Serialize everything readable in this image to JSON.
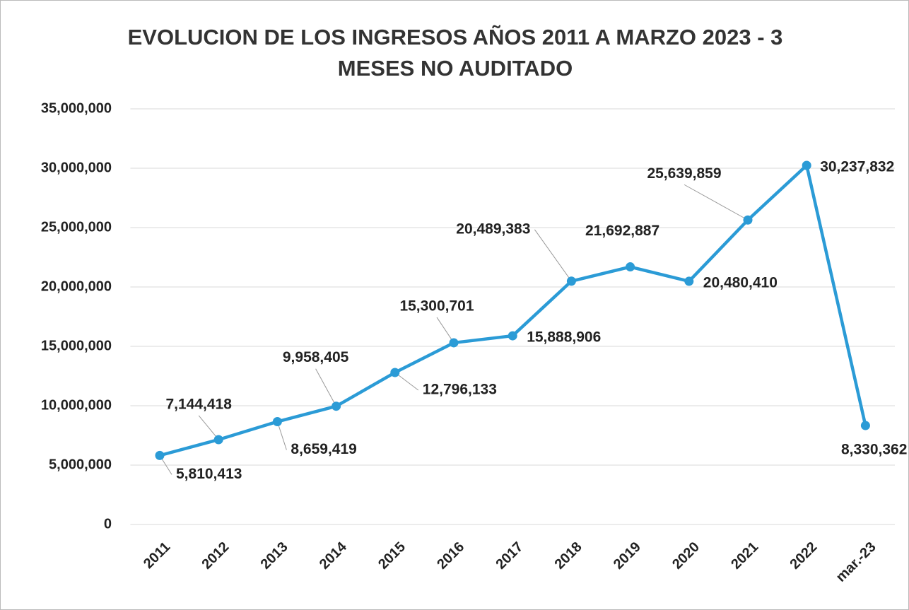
{
  "chart_data": {
    "type": "line",
    "title": "EVOLUCION DE LOS INGRESOS AÑOS 2011 A MARZO 2023 - 3 MESES NO AUDITADO",
    "categories": [
      "2011",
      "2012",
      "2013",
      "2014",
      "2015",
      "2016",
      "2017",
      "2018",
      "2019",
      "2020",
      "2021",
      "2022",
      "mar.-23"
    ],
    "values": [
      5810413,
      7144418,
      8659419,
      9958405,
      12796133,
      15300701,
      15888906,
      20489383,
      21692887,
      20480410,
      25639859,
      30237832,
      8330362
    ],
    "value_labels": [
      "5,810,413",
      "7,144,418",
      "8,659,419",
      "9,958,405",
      "12,796,133",
      "15,300,701",
      "15,888,906",
      "20,489,383",
      "21,692,887",
      "20,480,410",
      "25,639,859",
      "30,237,832",
      "8,330,362"
    ],
    "color": "#2b9bd6",
    "ylim": [
      0,
      35000000
    ],
    "yticks": [
      0,
      {
        "value": 5000000,
        "label": "5,000,000"
      },
      {
        "value": 10000000,
        "label": "10,000,000"
      },
      {
        "value": 15000000,
        "label": "15,000,000"
      },
      {
        "value": 20000000,
        "label": "20,000,000"
      },
      {
        "value": 25000000,
        "label": "25,000,000"
      },
      {
        "value": 30000000,
        "label": "30,000,000"
      },
      {
        "value": 35000000,
        "label": "35,000,000"
      }
    ],
    "grid": true
  }
}
